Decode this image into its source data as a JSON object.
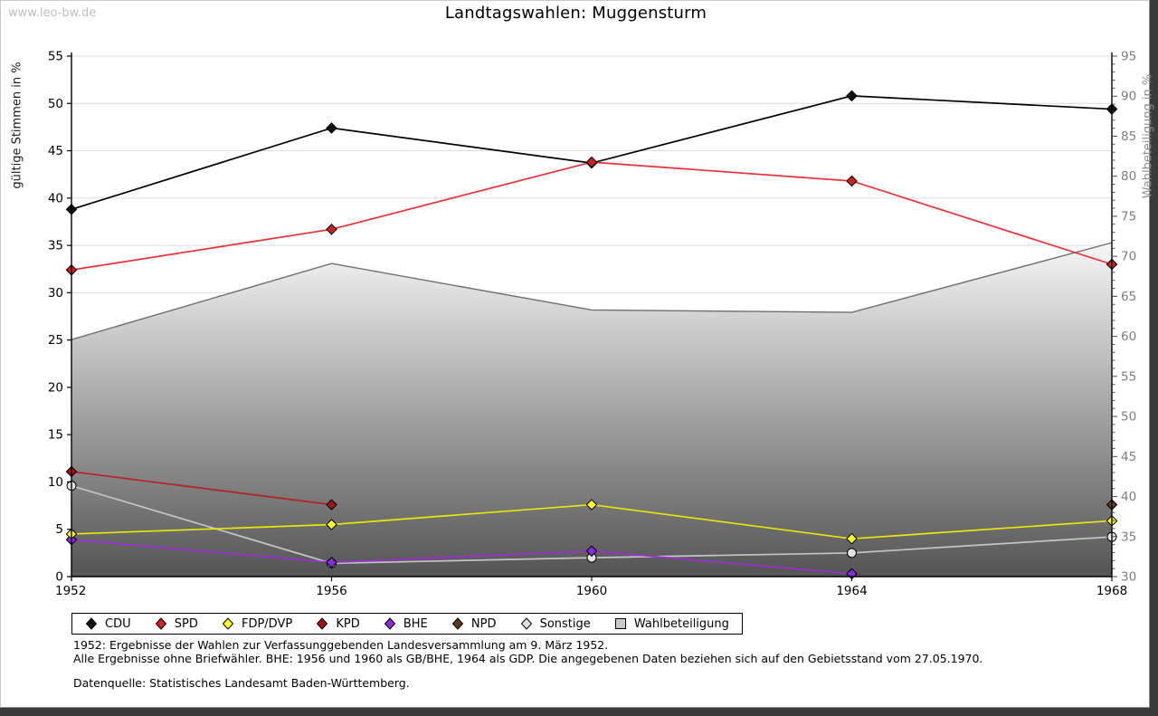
{
  "watermark": "www.leo-bw.de",
  "title": "Landtagswahlen: Muggensturm",
  "chart_data": {
    "type": "line",
    "title": "Landtagswahlen: Muggensturm",
    "categories": [
      "1952",
      "1956",
      "1960",
      "1964",
      "1968"
    ],
    "left_axis": {
      "label": "gültige Stimmen in %",
      "min": 0,
      "max": 55,
      "tick_step": 5
    },
    "right_axis": {
      "label": "Wahlbeteiligung in %",
      "min": 30,
      "max": 95,
      "tick_step": 5,
      "minor_tick_step": 1
    },
    "grid": "horizontal",
    "legend_position": "bottom",
    "series": [
      {
        "name": "Wahlbeteiligung",
        "axis": "right",
        "kind": "area",
        "line_color": "#6e6e6e",
        "fill_top": "#f6f6f6",
        "fill_bottom": "#545454",
        "values": [
          59.6,
          69.1,
          63.3,
          63.0,
          71.7
        ]
      },
      {
        "name": "Sonstige",
        "axis": "left",
        "kind": "line",
        "marker": "circle",
        "line_color": "#c4c4c4",
        "marker_fill": "#e2e2e2",
        "values": [
          9.6,
          1.4,
          2.0,
          2.5,
          4.2
        ]
      },
      {
        "name": "BHE",
        "axis": "left",
        "kind": "line",
        "marker": "diamond",
        "line_color": "#9b30d0",
        "marker_fill": "#8a2be2",
        "values": [
          3.9,
          1.5,
          2.7,
          0.3,
          null
        ]
      },
      {
        "name": "FDP/DVP",
        "axis": "left",
        "kind": "line",
        "marker": "diamond",
        "line_color": "#e8e800",
        "marker_fill": "#ffff33",
        "values": [
          4.5,
          5.5,
          7.6,
          4.0,
          5.9
        ]
      },
      {
        "name": "KPD",
        "axis": "left",
        "kind": "line",
        "marker": "diamond",
        "line_color": "#b22222",
        "marker_fill": "#a11218",
        "values": [
          11.1,
          7.6,
          null,
          null,
          null
        ]
      },
      {
        "name": "NPD",
        "axis": "left",
        "kind": "line",
        "marker": "diamond",
        "line_color": "#5c3a21",
        "marker_fill": "#5c3a21",
        "values": [
          null,
          null,
          null,
          null,
          7.6
        ]
      },
      {
        "name": "CDU",
        "axis": "left",
        "kind": "line",
        "marker": "diamond",
        "line_color": "#000000",
        "marker_fill": "#111111",
        "values": [
          38.8,
          47.4,
          43.7,
          50.8,
          49.4
        ]
      },
      {
        "name": "SPD",
        "axis": "left",
        "kind": "line",
        "marker": "diamond",
        "line_color": "#e73137",
        "marker_fill": "#cf2128",
        "values": [
          32.4,
          36.7,
          43.8,
          41.8,
          33.0
        ]
      }
    ],
    "legend_order": [
      "CDU",
      "SPD",
      "FDP/DVP",
      "KPD",
      "BHE",
      "NPD",
      "Sonstige",
      "Wahlbeteiligung"
    ]
  },
  "footer": {
    "line1": "1952: Ergebnisse der Wahlen zur Verfassunggebenden Landesversammlung am 9. März 1952.",
    "line2": "Alle Ergebnisse ohne Briefwähler. BHE: 1956 und 1960 als GB/BHE, 1964 als GDP. Die angegebenen Daten beziehen sich auf den Gebietsstand vom 27.05.1970.",
    "line3": "Datenquelle: Statistisches Landesamt Baden-Württemberg."
  }
}
